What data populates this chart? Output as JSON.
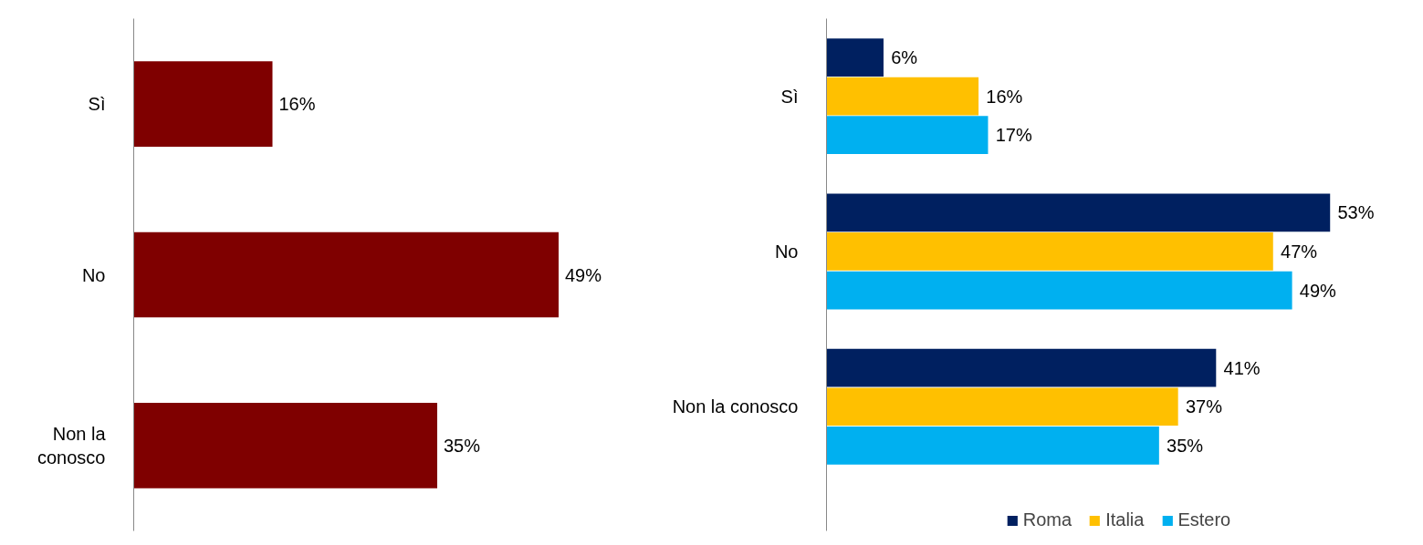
{
  "chart_data": [
    {
      "type": "bar",
      "orientation": "horizontal",
      "categories": [
        "Sì",
        "No",
        "Non la\nconosco"
      ],
      "values": [
        16,
        49,
        35
      ],
      "color": "#7f0000",
      "value_labels": [
        "16%",
        "49%",
        "35%"
      ]
    },
    {
      "type": "bar",
      "orientation": "horizontal",
      "categories": [
        "Sì",
        "No",
        "Non la conosco"
      ],
      "legend": "bottom",
      "series": [
        {
          "name": "Roma",
          "color": "#002060",
          "values": [
            6,
            53,
            41
          ],
          "value_labels": [
            "6%",
            "53%",
            "41%"
          ]
        },
        {
          "name": "Italia",
          "color": "#ffc000",
          "values": [
            16,
            47,
            37
          ],
          "value_labels": [
            "16%",
            "47%",
            "37%"
          ]
        },
        {
          "name": "Estero",
          "color": "#00b0f0",
          "values": [
            17,
            49,
            35
          ],
          "value_labels": [
            "17%",
            "49%",
            "35%"
          ]
        }
      ]
    }
  ]
}
